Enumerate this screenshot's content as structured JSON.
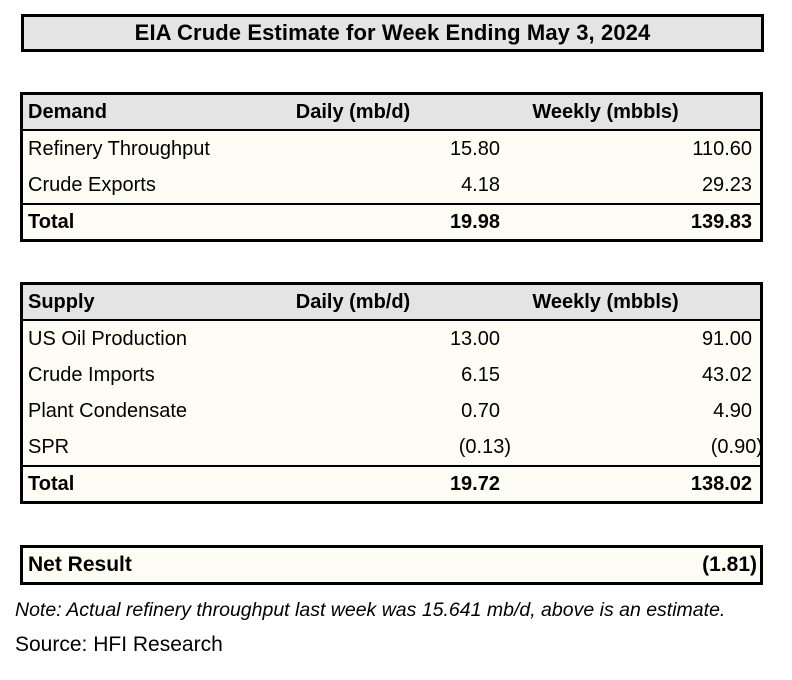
{
  "title": "EIA Crude Estimate for Week Ending May 3, 2024",
  "columns": {
    "daily": "Daily (mb/d)",
    "weekly": "Weekly (mbbls)"
  },
  "demand": {
    "header": "Demand",
    "rows": [
      {
        "label": "Refinery Throughput",
        "daily": "15.80",
        "weekly": "110.60"
      },
      {
        "label": "Crude Exports",
        "daily": "4.18",
        "weekly": "29.23"
      }
    ],
    "total": {
      "label": "Total",
      "daily": "19.98",
      "weekly": "139.83"
    }
  },
  "supply": {
    "header": "Supply",
    "rows": [
      {
        "label": "US Oil Production",
        "daily": "13.00",
        "weekly": "91.00"
      },
      {
        "label": "Crude Imports",
        "daily": "6.15",
        "weekly": "43.02"
      },
      {
        "label": "Plant Condensate",
        "daily": "0.70",
        "weekly": "4.90"
      },
      {
        "label": "SPR",
        "daily": "(0.13)",
        "weekly": "(0.90)"
      }
    ],
    "total": {
      "label": "Total",
      "daily": "19.72",
      "weekly": "138.02"
    }
  },
  "net_result": {
    "label": "Net Result",
    "value": "(1.81)"
  },
  "note": "Note: Actual refinery throughput last week was 15.641 mb/d, above is an estimate.",
  "source": "Source: HFI Research",
  "colors": {
    "header_bg": "#E4E4E4",
    "cell_bg": "#FEFDF5",
    "border": "#000000",
    "text": "#000000"
  },
  "chart_data": [
    {
      "type": "table",
      "title": "EIA Crude Estimate for Week Ending May 3, 2024",
      "name": "Demand",
      "columns": [
        "Demand",
        "Daily (mb/d)",
        "Weekly (mbbls)"
      ],
      "rows": [
        [
          "Refinery Throughput",
          15.8,
          110.6
        ],
        [
          "Crude Exports",
          4.18,
          29.23
        ],
        [
          "Total",
          19.98,
          139.83
        ]
      ]
    },
    {
      "type": "table",
      "name": "Supply",
      "columns": [
        "Supply",
        "Daily (mb/d)",
        "Weekly (mbbls)"
      ],
      "rows": [
        [
          "US Oil Production",
          13.0,
          91.0
        ],
        [
          "Crude Imports",
          6.15,
          43.02
        ],
        [
          "Plant Condensate",
          0.7,
          4.9
        ],
        [
          "SPR",
          -0.13,
          -0.9
        ],
        [
          "Total",
          19.72,
          138.02
        ]
      ]
    },
    {
      "type": "table",
      "name": "Net Result",
      "columns": [
        "Net Result",
        "Weekly (mbbls)"
      ],
      "rows": [
        [
          "Net Result",
          -1.81
        ]
      ]
    }
  ]
}
